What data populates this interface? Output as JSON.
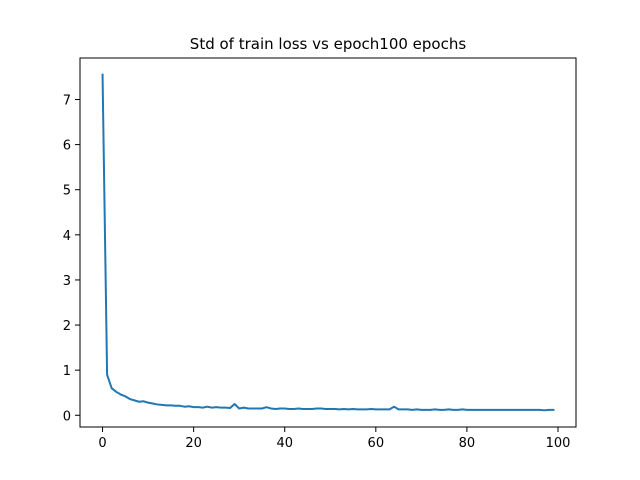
{
  "chart_data": {
    "type": "line",
    "title": "Std of train loss vs epoch100 epochs",
    "xlabel": "",
    "ylabel": "",
    "xlim": [
      -4.95,
      103.95
    ],
    "ylim": [
      -0.26,
      7.92
    ],
    "x_ticks": [
      0,
      20,
      40,
      60,
      80,
      100
    ],
    "y_ticks": [
      0,
      1,
      2,
      3,
      4,
      5,
      6,
      7
    ],
    "grid": false,
    "legend": "none",
    "series": [
      {
        "color": "#1f77b4",
        "x": [
          0,
          1,
          2,
          3,
          4,
          5,
          6,
          7,
          8,
          9,
          10,
          11,
          12,
          13,
          14,
          15,
          16,
          17,
          18,
          19,
          20,
          21,
          22,
          23,
          24,
          25,
          26,
          27,
          28,
          29,
          30,
          31,
          32,
          33,
          34,
          35,
          36,
          37,
          38,
          39,
          40,
          41,
          42,
          43,
          44,
          45,
          46,
          47,
          48,
          49,
          50,
          51,
          52,
          53,
          54,
          55,
          56,
          57,
          58,
          59,
          60,
          61,
          62,
          63,
          64,
          65,
          66,
          67,
          68,
          69,
          70,
          71,
          72,
          73,
          74,
          75,
          76,
          77,
          78,
          79,
          80,
          81,
          82,
          83,
          84,
          85,
          86,
          87,
          88,
          89,
          90,
          91,
          92,
          93,
          94,
          95,
          96,
          97,
          98,
          99
        ],
        "y": [
          7.55,
          0.9,
          0.6,
          0.52,
          0.46,
          0.42,
          0.36,
          0.33,
          0.3,
          0.31,
          0.28,
          0.26,
          0.24,
          0.23,
          0.22,
          0.22,
          0.21,
          0.21,
          0.19,
          0.2,
          0.18,
          0.18,
          0.17,
          0.19,
          0.17,
          0.18,
          0.17,
          0.17,
          0.16,
          0.25,
          0.15,
          0.17,
          0.15,
          0.15,
          0.15,
          0.15,
          0.18,
          0.15,
          0.14,
          0.15,
          0.15,
          0.14,
          0.14,
          0.15,
          0.14,
          0.14,
          0.14,
          0.15,
          0.15,
          0.14,
          0.14,
          0.14,
          0.13,
          0.14,
          0.13,
          0.14,
          0.13,
          0.13,
          0.13,
          0.14,
          0.13,
          0.13,
          0.13,
          0.13,
          0.19,
          0.13,
          0.13,
          0.13,
          0.12,
          0.13,
          0.12,
          0.12,
          0.12,
          0.13,
          0.12,
          0.12,
          0.13,
          0.12,
          0.12,
          0.13,
          0.12,
          0.12,
          0.12,
          0.12,
          0.12,
          0.12,
          0.12,
          0.12,
          0.12,
          0.12,
          0.12,
          0.12,
          0.12,
          0.12,
          0.12,
          0.12,
          0.12,
          0.11,
          0.12,
          0.12
        ]
      }
    ]
  },
  "colors": {
    "line": "#1f77b4",
    "axes": "#000000",
    "background": "#ffffff"
  }
}
